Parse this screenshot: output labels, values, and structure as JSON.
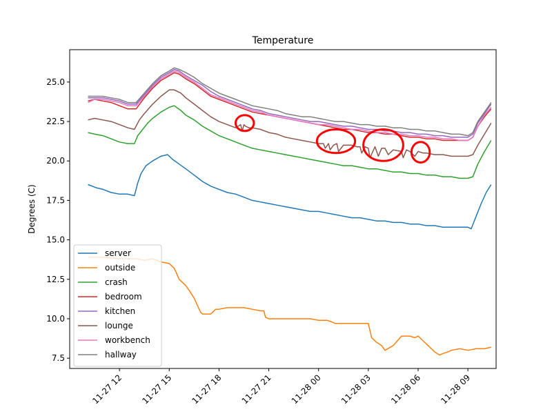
{
  "chart_data": {
    "type": "line",
    "title": "Temperature",
    "xlabel": "",
    "ylabel": "Degrees (C)",
    "xlim": [
      9.0,
      34.7
    ],
    "ylim": [
      6.85,
      27.05
    ],
    "x_ticks": [
      {
        "value": 12,
        "label": "11-27 12"
      },
      {
        "value": 15,
        "label": "11-27 15"
      },
      {
        "value": 18,
        "label": "11-27 18"
      },
      {
        "value": 21,
        "label": "11-27 21"
      },
      {
        "value": 24,
        "label": "11-28 00"
      },
      {
        "value": 27,
        "label": "11-28 03"
      },
      {
        "value": 30,
        "label": "11-28 06"
      },
      {
        "value": 33,
        "label": "11-28 09"
      }
    ],
    "y_ticks": [
      {
        "value": 7.5,
        "label": "7.5"
      },
      {
        "value": 10.0,
        "label": "10.0"
      },
      {
        "value": 12.5,
        "label": "12.5"
      },
      {
        "value": 15.0,
        "label": "15.0"
      },
      {
        "value": 17.5,
        "label": "17.5"
      },
      {
        "value": 20.0,
        "label": "20.0"
      },
      {
        "value": 22.5,
        "label": "22.5"
      },
      {
        "value": 25.0,
        "label": "25.0"
      }
    ],
    "legend_position": "lower-left",
    "series": [
      {
        "name": "server",
        "color": "#1f77b4",
        "x": [
          10.1,
          10.6,
          11.0,
          11.5,
          12.0,
          12.5,
          12.9,
          13.1,
          13.3,
          13.6,
          14.0,
          14.5,
          14.9,
          15.2,
          15.6,
          16.0,
          16.5,
          17.0,
          17.5,
          18.0,
          18.5,
          19.0,
          19.5,
          20.0,
          20.5,
          21.0,
          21.5,
          22.0,
          22.5,
          23.0,
          23.5,
          24.0,
          24.5,
          25.0,
          25.5,
          26.0,
          26.5,
          27.0,
          27.5,
          28.0,
          28.5,
          29.0,
          29.5,
          30.0,
          30.5,
          31.0,
          31.5,
          32.0,
          32.5,
          33.0,
          33.2,
          33.5,
          33.8,
          34.1,
          34.4
        ],
        "y": [
          18.5,
          18.3,
          18.2,
          18.0,
          17.9,
          17.9,
          17.8,
          18.6,
          19.2,
          19.7,
          20.0,
          20.3,
          20.4,
          20.1,
          19.8,
          19.5,
          19.1,
          18.7,
          18.4,
          18.2,
          18.0,
          17.9,
          17.7,
          17.5,
          17.4,
          17.3,
          17.2,
          17.1,
          17.0,
          16.9,
          16.8,
          16.8,
          16.7,
          16.6,
          16.5,
          16.4,
          16.4,
          16.3,
          16.2,
          16.2,
          16.1,
          16.1,
          16.0,
          16.0,
          15.9,
          15.9,
          15.8,
          15.8,
          15.8,
          15.8,
          15.7,
          16.5,
          17.3,
          18.0,
          18.5
        ]
      },
      {
        "name": "outside",
        "color": "#ff7f0e",
        "x": [
          10.1,
          11.0,
          12.0,
          13.0,
          13.5,
          14.0,
          14.5,
          15.0,
          15.3,
          15.6,
          16.0,
          16.2,
          16.5,
          16.8,
          16.9,
          17.0,
          17.2,
          17.5,
          17.8,
          18.0,
          18.5,
          19.0,
          19.5,
          20.0,
          20.5,
          20.7,
          20.8,
          21.0,
          21.5,
          22.0,
          22.5,
          23.0,
          23.5,
          24.0,
          24.3,
          24.5,
          24.8,
          25.0,
          25.5,
          26.0,
          26.5,
          27.0,
          27.2,
          27.5,
          27.8,
          28.0,
          28.5,
          29.0,
          29.5,
          29.8,
          30.0,
          30.3,
          30.6,
          31.0,
          31.3,
          31.5,
          31.8,
          32.0,
          32.5,
          33.0,
          33.5,
          34.0,
          34.4
        ],
        "y": [
          13.9,
          13.9,
          13.8,
          13.8,
          13.7,
          13.8,
          13.6,
          13.5,
          13.2,
          12.5,
          12.1,
          11.8,
          11.3,
          10.6,
          10.4,
          10.3,
          10.3,
          10.3,
          10.6,
          10.6,
          10.7,
          10.7,
          10.7,
          10.6,
          10.5,
          10.5,
          10.1,
          10.0,
          10.0,
          10.0,
          10.0,
          10.0,
          10.0,
          9.9,
          9.9,
          9.9,
          9.8,
          9.7,
          9.7,
          9.7,
          9.7,
          9.7,
          8.8,
          8.5,
          8.3,
          8.0,
          8.3,
          8.9,
          8.9,
          8.8,
          8.9,
          8.6,
          8.3,
          7.9,
          7.7,
          7.8,
          7.9,
          8.0,
          8.1,
          8.0,
          8.1,
          8.1,
          8.2
        ]
      },
      {
        "name": "crash",
        "color": "#2ca02c",
        "x": [
          10.1,
          10.5,
          11.0,
          11.5,
          12.0,
          12.5,
          12.9,
          13.1,
          13.4,
          13.7,
          14.0,
          14.5,
          15.0,
          15.3,
          15.7,
          16.0,
          16.5,
          17.0,
          17.5,
          18.0,
          18.5,
          19.0,
          19.5,
          20.0,
          20.5,
          21.0,
          21.5,
          22.0,
          22.5,
          23.0,
          23.5,
          24.0,
          24.5,
          25.0,
          25.5,
          26.0,
          26.5,
          27.0,
          27.5,
          28.0,
          28.5,
          29.0,
          29.5,
          30.0,
          30.5,
          31.0,
          31.5,
          32.0,
          32.5,
          33.0,
          33.3,
          33.6,
          34.0,
          34.4
        ],
        "y": [
          21.8,
          21.7,
          21.6,
          21.4,
          21.2,
          21.1,
          21.1,
          21.6,
          22.0,
          22.4,
          22.7,
          23.1,
          23.4,
          23.5,
          23.2,
          22.9,
          22.6,
          22.2,
          21.9,
          21.6,
          21.4,
          21.2,
          21.0,
          20.8,
          20.7,
          20.6,
          20.5,
          20.4,
          20.3,
          20.2,
          20.1,
          20.0,
          19.9,
          19.8,
          19.7,
          19.7,
          19.6,
          19.5,
          19.5,
          19.4,
          19.3,
          19.3,
          19.2,
          19.2,
          19.1,
          19.1,
          19.0,
          19.0,
          18.9,
          18.9,
          19.0,
          19.8,
          20.6,
          21.3
        ]
      },
      {
        "name": "bedroom",
        "color": "#d62728",
        "x": [
          10.1,
          10.5,
          11.0,
          11.5,
          12.0,
          12.5,
          13.0,
          13.5,
          14.0,
          14.5,
          15.0,
          15.3,
          15.6,
          16.0,
          16.5,
          17.0,
          17.5,
          18.0,
          18.5,
          19.0,
          19.5,
          20.0,
          20.5,
          21.0,
          21.5,
          22.0,
          22.5,
          23.0,
          23.5,
          24.0,
          24.5,
          25.0,
          25.5,
          26.0,
          26.5,
          27.0,
          27.5,
          28.0,
          28.5,
          29.0,
          29.5,
          30.0,
          30.5,
          31.0,
          31.5,
          32.0,
          32.5,
          33.0,
          33.3,
          33.6,
          34.0,
          34.4
        ],
        "y": [
          23.8,
          23.9,
          23.8,
          23.7,
          23.5,
          23.3,
          23.3,
          24.0,
          24.6,
          25.1,
          25.4,
          25.6,
          25.5,
          25.2,
          24.9,
          24.5,
          24.1,
          23.9,
          23.7,
          23.5,
          23.3,
          23.1,
          23.0,
          22.9,
          22.8,
          22.7,
          22.6,
          22.5,
          22.4,
          22.3,
          22.2,
          22.1,
          22.0,
          22.0,
          21.9,
          21.8,
          21.8,
          21.7,
          21.7,
          21.6,
          21.5,
          21.5,
          21.4,
          21.4,
          21.3,
          21.3,
          21.3,
          21.3,
          21.5,
          22.2,
          22.8,
          23.3
        ]
      },
      {
        "name": "kitchen",
        "color": "#9467bd",
        "x": [
          10.1,
          10.5,
          11.0,
          11.5,
          12.0,
          12.5,
          13.0,
          13.5,
          14.0,
          14.5,
          15.0,
          15.3,
          15.6,
          16.0,
          16.5,
          17.0,
          17.5,
          18.0,
          18.5,
          19.0,
          19.5,
          20.0,
          20.5,
          21.0,
          21.5,
          22.0,
          22.5,
          23.0,
          23.5,
          24.0,
          24.5,
          25.0,
          25.5,
          26.0,
          26.5,
          27.0,
          27.5,
          28.0,
          28.5,
          29.0,
          29.5,
          30.0,
          30.5,
          31.0,
          31.5,
          32.0,
          32.5,
          33.0,
          33.3,
          33.6,
          34.0,
          34.4
        ],
        "y": [
          24.0,
          24.0,
          24.0,
          23.9,
          23.8,
          23.6,
          23.6,
          24.2,
          24.8,
          25.3,
          25.6,
          25.8,
          25.7,
          25.4,
          25.1,
          24.8,
          24.4,
          24.1,
          23.9,
          23.7,
          23.5,
          23.3,
          23.2,
          23.0,
          22.9,
          22.8,
          22.7,
          22.6,
          22.5,
          22.5,
          22.4,
          22.3,
          22.2,
          22.2,
          22.1,
          22.0,
          22.0,
          21.9,
          21.9,
          21.8,
          21.8,
          21.7,
          21.7,
          21.6,
          21.6,
          21.5,
          21.5,
          21.5,
          21.7,
          22.4,
          23.0,
          23.6
        ]
      },
      {
        "name": "lounge",
        "color": "#8c564b",
        "x": [
          10.1,
          10.5,
          11.0,
          11.5,
          12.0,
          12.5,
          12.9,
          13.2,
          13.5,
          14.0,
          14.5,
          15.0,
          15.3,
          15.7,
          16.0,
          16.5,
          17.0,
          17.5,
          18.0,
          18.5,
          19.0,
          19.3,
          19.4,
          19.5,
          19.6,
          19.8,
          20.0,
          20.5,
          21.0,
          21.5,
          22.0,
          22.5,
          23.0,
          23.5,
          24.0,
          24.3,
          24.4,
          24.6,
          24.7,
          24.9,
          25.1,
          25.2,
          25.5,
          26.0,
          26.3,
          26.5,
          26.6,
          26.8,
          27.0,
          27.1,
          27.4,
          27.6,
          27.8,
          28.0,
          28.2,
          28.5,
          29.0,
          29.1,
          29.3,
          29.5,
          29.8,
          30.0,
          30.3,
          30.5,
          31.0,
          31.5,
          32.0,
          32.5,
          33.0,
          33.3,
          33.6,
          34.0,
          34.4
        ],
        "y": [
          22.6,
          22.7,
          22.6,
          22.5,
          22.3,
          22.1,
          22.0,
          22.6,
          23.0,
          23.6,
          24.1,
          24.5,
          24.5,
          24.3,
          24.0,
          23.6,
          23.2,
          22.8,
          22.5,
          22.3,
          22.1,
          22.3,
          21.9,
          22.3,
          22.2,
          22.1,
          22.1,
          22.0,
          21.8,
          21.7,
          21.5,
          21.4,
          21.3,
          21.2,
          21.1,
          21.1,
          20.8,
          21.1,
          20.7,
          21.0,
          21.1,
          20.6,
          21.0,
          21.0,
          20.9,
          20.9,
          20.5,
          20.9,
          20.8,
          20.2,
          20.9,
          20.3,
          20.8,
          20.8,
          20.4,
          20.7,
          20.6,
          20.2,
          20.7,
          20.6,
          20.3,
          20.6,
          20.5,
          20.5,
          20.4,
          20.4,
          20.3,
          20.3,
          20.3,
          20.4,
          21.0,
          21.7,
          22.4
        ]
      },
      {
        "name": "workbench",
        "color": "#e377c2",
        "x": [
          10.1,
          10.5,
          11.0,
          11.5,
          12.0,
          12.5,
          13.0,
          13.5,
          14.0,
          14.5,
          15.0,
          15.3,
          15.6,
          16.0,
          16.5,
          17.0,
          17.5,
          18.0,
          18.5,
          19.0,
          19.5,
          20.0,
          20.5,
          21.0,
          21.5,
          22.0,
          22.5,
          23.0,
          23.5,
          24.0,
          24.5,
          25.0,
          25.5,
          26.0,
          26.5,
          27.0,
          27.5,
          28.0,
          28.5,
          29.0,
          29.5,
          30.0,
          30.5,
          31.0,
          31.5,
          32.0,
          32.5,
          33.0,
          33.3,
          33.6,
          34.0,
          34.4
        ],
        "y": [
          23.7,
          23.9,
          23.9,
          23.8,
          23.7,
          23.5,
          23.5,
          24.1,
          24.7,
          25.2,
          25.5,
          25.7,
          25.6,
          25.3,
          25.0,
          24.6,
          24.2,
          24.0,
          23.8,
          23.6,
          23.4,
          23.2,
          23.1,
          22.9,
          22.8,
          22.7,
          22.6,
          22.5,
          22.4,
          22.3,
          22.3,
          22.2,
          22.1,
          22.0,
          22.0,
          21.9,
          21.8,
          21.8,
          21.7,
          21.7,
          21.6,
          21.6,
          21.5,
          21.5,
          21.4,
          21.4,
          21.3,
          21.3,
          21.5,
          22.2,
          22.9,
          23.4
        ]
      },
      {
        "name": "hallway",
        "color": "#7f7f7f",
        "x": [
          10.1,
          10.5,
          11.0,
          11.5,
          12.0,
          12.5,
          13.0,
          13.5,
          14.0,
          14.5,
          15.0,
          15.3,
          15.6,
          16.0,
          16.5,
          17.0,
          17.5,
          18.0,
          18.5,
          19.0,
          19.5,
          20.0,
          20.5,
          21.0,
          21.5,
          22.0,
          22.5,
          23.0,
          23.5,
          24.0,
          24.5,
          25.0,
          25.5,
          26.0,
          26.5,
          27.0,
          27.5,
          28.0,
          28.5,
          29.0,
          29.5,
          30.0,
          30.5,
          31.0,
          31.5,
          32.0,
          32.5,
          33.0,
          33.3,
          33.6,
          34.0,
          34.4
        ],
        "y": [
          24.1,
          24.1,
          24.1,
          24.0,
          23.9,
          23.7,
          23.7,
          24.3,
          24.9,
          25.4,
          25.7,
          25.9,
          25.8,
          25.6,
          25.3,
          24.9,
          24.6,
          24.3,
          24.1,
          23.9,
          23.7,
          23.5,
          23.4,
          23.3,
          23.2,
          23.0,
          22.9,
          22.8,
          22.8,
          22.7,
          22.6,
          22.5,
          22.5,
          22.4,
          22.3,
          22.3,
          22.2,
          22.2,
          22.1,
          22.1,
          22.0,
          22.0,
          21.9,
          21.9,
          21.8,
          21.7,
          21.7,
          21.6,
          21.8,
          22.5,
          23.1,
          23.7
        ]
      }
    ],
    "annotations": {
      "type": "hand-drawn red circles marking dips in the lounge series",
      "color": "#ff0000",
      "regions": [
        {
          "x": [
            19.0,
            20.1
          ],
          "y": [
            21.9,
            22.9
          ]
        },
        {
          "x": [
            23.9,
            26.2
          ],
          "y": [
            20.5,
            22.0
          ]
        },
        {
          "x": [
            26.7,
            29.1
          ],
          "y": [
            20.0,
            22.0
          ]
        },
        {
          "x": [
            29.6,
            30.7
          ],
          "y": [
            19.9,
            21.2
          ]
        }
      ]
    }
  }
}
